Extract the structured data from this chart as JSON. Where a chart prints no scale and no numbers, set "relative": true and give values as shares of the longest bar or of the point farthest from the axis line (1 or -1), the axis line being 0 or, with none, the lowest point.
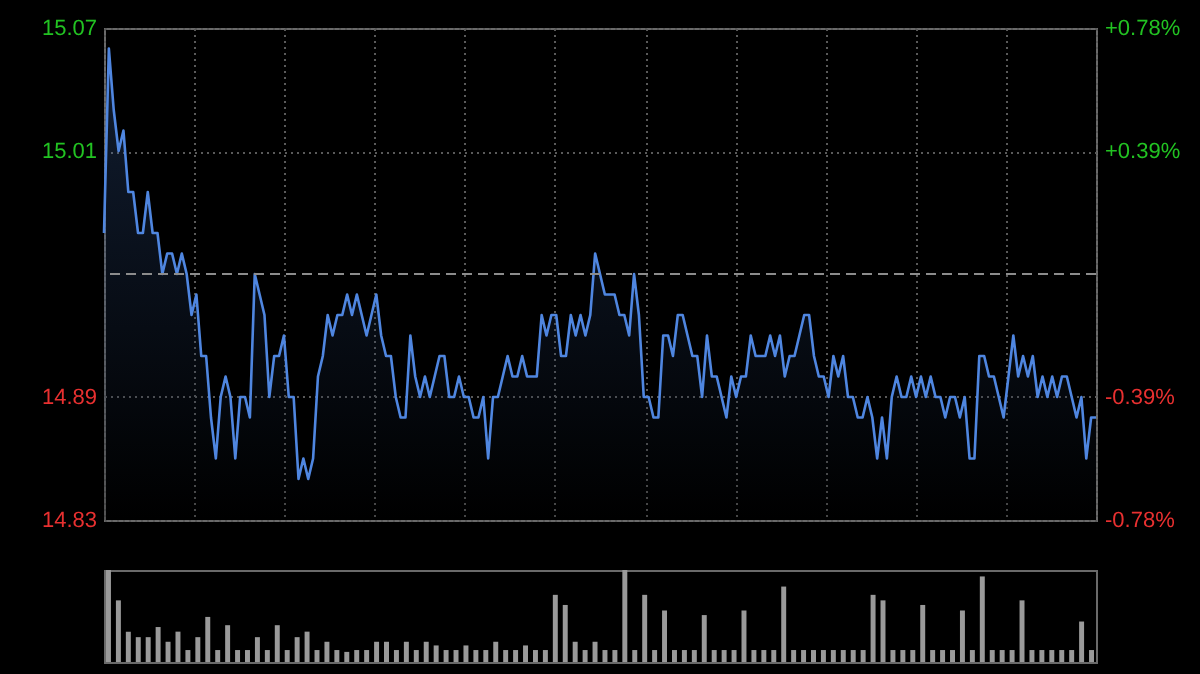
{
  "chart_data": [
    {
      "type": "area",
      "categories": [
        null,
        null,
        null,
        null,
        null,
        null,
        null,
        null,
        null,
        null,
        null,
        null,
        null,
        null,
        null,
        null,
        null,
        null,
        null,
        null,
        null,
        null,
        null,
        null,
        null,
        null,
        null,
        null,
        null,
        null,
        null,
        null,
        null,
        null,
        null,
        null,
        null,
        null,
        null,
        null,
        null,
        null,
        null,
        null,
        null,
        null,
        null,
        null,
        null,
        null,
        null,
        null,
        null,
        null,
        null,
        null,
        null,
        null,
        null,
        null,
        null,
        null,
        null,
        null,
        null,
        null,
        null,
        null,
        null,
        null,
        null,
        null,
        null,
        null,
        null,
        null,
        null,
        null,
        null,
        null,
        null,
        null,
        null,
        null,
        null,
        null,
        null,
        null,
        null,
        null,
        null,
        null,
        null,
        null,
        null,
        null,
        null,
        null,
        null,
        null,
        null,
        null,
        null,
        null,
        null,
        null,
        null,
        null,
        null,
        null,
        null,
        null,
        null,
        null,
        null,
        null,
        null,
        null,
        null,
        null,
        null,
        null,
        null,
        null,
        null,
        null,
        null,
        null,
        null,
        null,
        null,
        null,
        null,
        null,
        null,
        null,
        null,
        null,
        null,
        null,
        null,
        null,
        null,
        null,
        null,
        null,
        null,
        null,
        null,
        null,
        null,
        null,
        null,
        null,
        null,
        null,
        null,
        null,
        null,
        null,
        null,
        null,
        null,
        null,
        null,
        null,
        null,
        null,
        null,
        null,
        null,
        null,
        null,
        null,
        null,
        null,
        null,
        null,
        null,
        null,
        null,
        null,
        null,
        null,
        null,
        null,
        null,
        null,
        null,
        null,
        null,
        null,
        null,
        null,
        null,
        null,
        null,
        null,
        null,
        null,
        null,
        null,
        null,
        null,
        null
      ],
      "series": [
        {
          "color": "#4f86e0",
          "values": [
            14.97,
            15.06,
            15.03,
            15.01,
            15.02,
            14.99,
            14.99,
            14.97,
            14.97,
            14.99,
            14.97,
            14.97,
            14.95,
            14.96,
            14.96,
            14.95,
            14.96,
            14.95,
            14.93,
            14.94,
            14.91,
            14.91,
            14.88,
            14.86,
            14.89,
            14.9,
            14.89,
            14.86,
            14.89,
            14.89,
            14.88,
            14.95,
            14.94,
            14.93,
            14.89,
            14.91,
            14.91,
            14.92,
            14.89,
            14.89,
            14.85,
            14.86,
            14.85,
            14.86,
            14.9,
            14.91,
            14.93,
            14.92,
            14.93,
            14.93,
            14.94,
            14.93,
            14.94,
            14.93,
            14.92,
            14.93,
            14.94,
            14.92,
            14.91,
            14.91,
            14.89,
            14.88,
            14.88,
            14.92,
            14.9,
            14.89,
            14.9,
            14.89,
            14.9,
            14.91,
            14.91,
            14.89,
            14.89,
            14.9,
            14.89,
            14.89,
            14.88,
            14.88,
            14.89,
            14.86,
            14.89,
            14.89,
            14.9,
            14.91,
            14.9,
            14.9,
            14.91,
            14.9,
            14.9,
            14.9,
            14.93,
            14.92,
            14.93,
            14.93,
            14.91,
            14.91,
            14.93,
            14.92,
            14.93,
            14.92,
            14.93,
            14.96,
            14.95,
            14.94,
            14.94,
            14.94,
            14.93,
            14.93,
            14.92,
            14.95,
            14.93,
            14.89,
            14.89,
            14.88,
            14.88,
            14.92,
            14.92,
            14.91,
            14.93,
            14.93,
            14.92,
            14.91,
            14.91,
            14.89,
            14.92,
            14.9,
            14.9,
            14.89,
            14.88,
            14.9,
            14.89,
            14.9,
            14.9,
            14.92,
            14.91,
            14.91,
            14.91,
            14.92,
            14.91,
            14.92,
            14.9,
            14.91,
            14.91,
            14.92,
            14.93,
            14.93,
            14.91,
            14.9,
            14.9,
            14.89,
            14.91,
            14.9,
            14.91,
            14.89,
            14.89,
            14.88,
            14.88,
            14.89,
            14.88,
            14.86,
            14.88,
            14.86,
            14.89,
            14.9,
            14.89,
            14.89,
            14.9,
            14.89,
            14.9,
            14.89,
            14.9,
            14.89,
            14.89,
            14.88,
            14.89,
            14.89,
            14.88,
            14.89,
            14.86,
            14.86,
            14.91,
            14.91,
            14.9,
            14.9,
            14.89,
            14.88,
            14.9,
            14.92,
            14.9,
            14.91,
            14.9,
            14.91,
            14.89,
            14.9,
            14.89,
            14.9,
            14.89,
            14.9,
            14.9,
            14.89,
            14.88,
            14.89,
            14.86,
            14.88,
            14.88
          ]
        }
      ],
      "ylim": [
        14.83,
        15.07
      ],
      "yticks": [
        14.83,
        14.89,
        15.01,
        15.07
      ],
      "y2lim": [
        -0.78,
        0.78
      ],
      "y2ticks": [
        {
          "value": -0.78,
          "label": "-0.78%"
        },
        {
          "value": -0.39,
          "label": "-0.39%"
        },
        {
          "value": 0.39,
          "label": "+0.39%"
        },
        {
          "value": 0.78,
          "label": "+0.78%"
        }
      ],
      "ref_lines": [
        {
          "axis": "y",
          "value": 14.95,
          "color": "#8c8c8c",
          "line_style": "dashed"
        }
      ],
      "grid": true
    },
    {
      "type": "bar",
      "relative": true,
      "categories": [
        null,
        null,
        null,
        null,
        null,
        null,
        null,
        null,
        null,
        null,
        null,
        null,
        null,
        null,
        null,
        null,
        null,
        null,
        null,
        null,
        null,
        null,
        null,
        null,
        null,
        null,
        null,
        null,
        null,
        null,
        null,
        null,
        null,
        null,
        null,
        null,
        null,
        null,
        null,
        null,
        null,
        null,
        null,
        null,
        null,
        null,
        null,
        null,
        null,
        null,
        null,
        null,
        null,
        null,
        null,
        null,
        null,
        null,
        null,
        null,
        null,
        null,
        null,
        null,
        null,
        null,
        null,
        null,
        null,
        null,
        null,
        null,
        null,
        null,
        null,
        null,
        null,
        null,
        null,
        null,
        null,
        null,
        null,
        null,
        null,
        null,
        null,
        null,
        null,
        null,
        null,
        null,
        null,
        null,
        null,
        null,
        null,
        null,
        null,
        null
      ],
      "series": [
        {
          "color": "#9a9a9a",
          "values": [
            1.0,
            0.67,
            0.33,
            0.27,
            0.27,
            0.38,
            0.22,
            0.33,
            0.13,
            0.27,
            0.49,
            0.13,
            0.4,
            0.13,
            0.13,
            0.27,
            0.13,
            0.4,
            0.13,
            0.27,
            0.33,
            0.13,
            0.22,
            0.13,
            0.11,
            0.13,
            0.13,
            0.22,
            0.22,
            0.13,
            0.22,
            0.13,
            0.22,
            0.18,
            0.13,
            0.13,
            0.18,
            0.13,
            0.13,
            0.22,
            0.13,
            0.13,
            0.18,
            0.13,
            0.13,
            0.73,
            0.62,
            0.22,
            0.13,
            0.22,
            0.13,
            0.13,
            1.0,
            0.13,
            0.73,
            0.13,
            0.56,
            0.13,
            0.13,
            0.13,
            0.51,
            0.13,
            0.13,
            0.13,
            0.56,
            0.13,
            0.13,
            0.13,
            0.82,
            0.13,
            0.13,
            0.13,
            0.13,
            0.13,
            0.13,
            0.13,
            0.13,
            0.73,
            0.67,
            0.13,
            0.13,
            0.13,
            0.62,
            0.13,
            0.13,
            0.13,
            0.56,
            0.13,
            0.93,
            0.13,
            0.13,
            0.13,
            0.67,
            0.13,
            0.13,
            0.13,
            0.13,
            0.13,
            0.44,
            0.13
          ]
        }
      ]
    }
  ]
}
